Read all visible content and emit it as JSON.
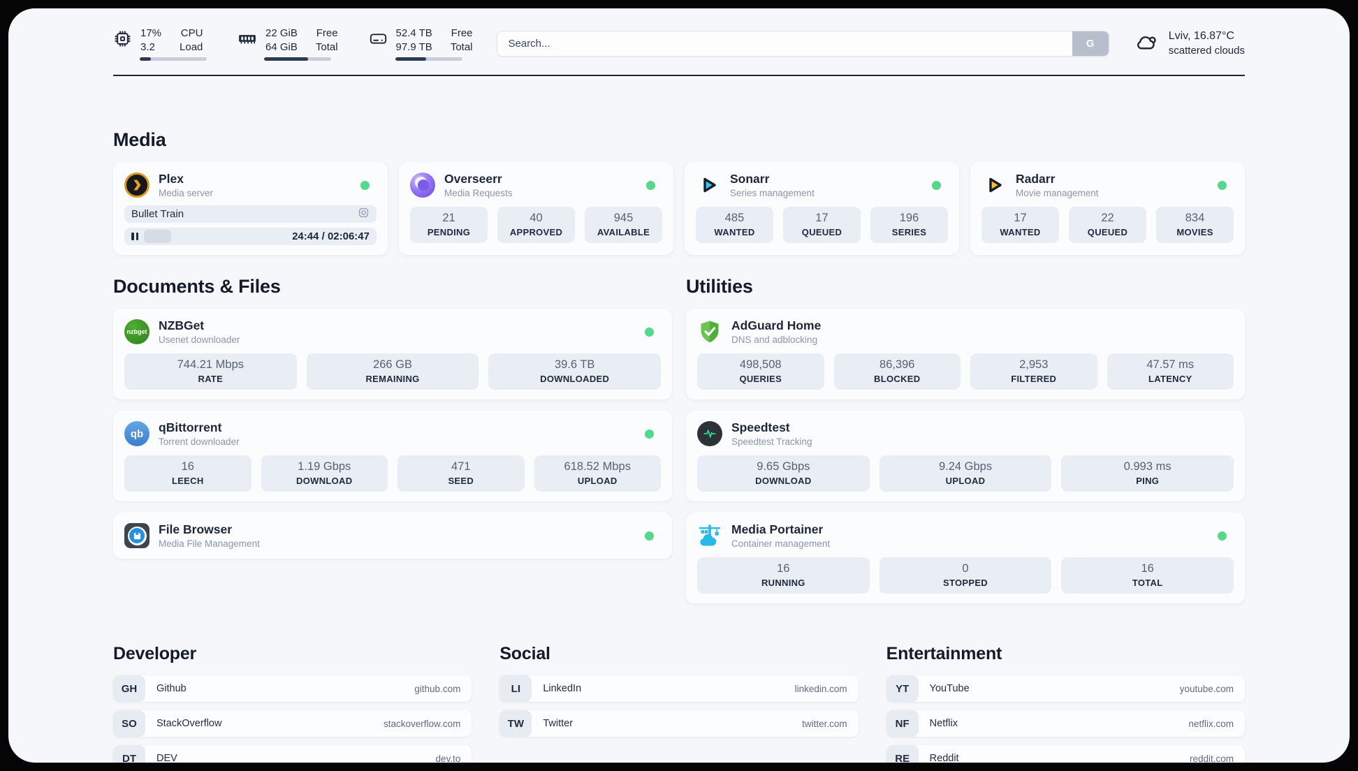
{
  "theme": {
    "outer_bg": "#050505",
    "page_bg": "#f6f7fa",
    "divider": "#1d2738",
    "status_online": "#54d98c",
    "tile_bg": "#e9edf4"
  },
  "header": {
    "cpu": {
      "icon": "cpu-chip-icon",
      "line1_value": "17%",
      "line2_value": "3.2",
      "line1_label": "CPU",
      "line2_label": "Load",
      "progress_pct": 17
    },
    "memory": {
      "icon": "memory-icon",
      "line1_value": "22 GiB",
      "line2_value": "64 GiB",
      "line1_label": "Free",
      "line2_label": "Total",
      "progress_pct": 66
    },
    "disk": {
      "icon": "disk-icon",
      "line1_value": "52.4 TB",
      "line2_value": "97.9 TB",
      "line1_label": "Free",
      "line2_label": "Total",
      "progress_pct": 46
    },
    "search": {
      "placeholder": "Search...",
      "button_label": "G"
    },
    "weather": {
      "icon": "cloud-icon",
      "location": "Lviv, 16.87°C",
      "condition": "scattered clouds"
    }
  },
  "sections": {
    "media": {
      "title": "Media",
      "apps": [
        {
          "name": "Plex",
          "description": "Media server",
          "icon": "plex",
          "online": true,
          "player": {
            "now_playing": "Bullet Train",
            "time": "24:44 / 02:06:47",
            "progress_pct": 19.5
          }
        },
        {
          "name": "Overseerr",
          "description": "Media Requests",
          "icon": "overseerr",
          "online": true,
          "stats": [
            {
              "value": "21",
              "label": "PENDING"
            },
            {
              "value": "40",
              "label": "APPROVED"
            },
            {
              "value": "945",
              "label": "AVAILABLE"
            }
          ]
        },
        {
          "name": "Sonarr",
          "description": "Series management",
          "icon": "sonarr",
          "online": true,
          "stats": [
            {
              "value": "485",
              "label": "WANTED"
            },
            {
              "value": "17",
              "label": "QUEUED"
            },
            {
              "value": "196",
              "label": "SERIES"
            }
          ]
        },
        {
          "name": "Radarr",
          "description": "Movie management",
          "icon": "radarr",
          "online": true,
          "stats": [
            {
              "value": "17",
              "label": "WANTED"
            },
            {
              "value": "22",
              "label": "QUEUED"
            },
            {
              "value": "834",
              "label": "MOVIES"
            }
          ]
        }
      ]
    },
    "documents": {
      "title": "Documents & Files",
      "apps": [
        {
          "name": "NZBGet",
          "description": "Usenet downloader",
          "icon": "nzbget",
          "icon_text": "nzbget",
          "online": true,
          "stats": [
            {
              "value": "744.21 Mbps",
              "label": "RATE"
            },
            {
              "value": "266 GB",
              "label": "REMAINING"
            },
            {
              "value": "39.6 TB",
              "label": "DOWNLOADED"
            }
          ]
        },
        {
          "name": "qBittorrent",
          "description": "Torrent downloader",
          "icon": "qbittorrent",
          "icon_text": "qb",
          "online": true,
          "stats": [
            {
              "value": "16",
              "label": "LEECH"
            },
            {
              "value": "1.19 Gbps",
              "label": "DOWNLOAD"
            },
            {
              "value": "471",
              "label": "SEED"
            },
            {
              "value": "618.52 Mbps",
              "label": "UPLOAD"
            }
          ]
        },
        {
          "name": "File Browser",
          "description": "Media File Management",
          "icon": "filebrowser",
          "online": true
        }
      ]
    },
    "utilities": {
      "title": "Utilities",
      "apps": [
        {
          "name": "AdGuard Home",
          "description": "DNS and adblocking",
          "icon": "adguard",
          "online": false,
          "stats": [
            {
              "value": "498,508",
              "label": "QUERIES"
            },
            {
              "value": "86,396",
              "label": "BLOCKED"
            },
            {
              "value": "2,953",
              "label": "FILTERED"
            },
            {
              "value": "47.57 ms",
              "label": "LATENCY"
            }
          ]
        },
        {
          "name": "Speedtest",
          "description": "Speedtest Tracking",
          "icon": "speedtest",
          "online": false,
          "stats": [
            {
              "value": "9.65 Gbps",
              "label": "DOWNLOAD"
            },
            {
              "value": "9.24 Gbps",
              "label": "UPLOAD"
            },
            {
              "value": "0.993 ms",
              "label": "PING"
            }
          ]
        },
        {
          "name": "Media Portainer",
          "description": "Container management",
          "icon": "portainer",
          "online": true,
          "stats": [
            {
              "value": "16",
              "label": "RUNNING"
            },
            {
              "value": "0",
              "label": "STOPPED"
            },
            {
              "value": "16",
              "label": "TOTAL"
            }
          ]
        }
      ]
    }
  },
  "bookmarks": {
    "groups": [
      {
        "title": "Developer",
        "items": [
          {
            "abbr": "GH",
            "name": "Github",
            "domain": "github.com"
          },
          {
            "abbr": "SO",
            "name": "StackOverflow",
            "domain": "stackoverflow.com"
          },
          {
            "abbr": "DT",
            "name": "DEV",
            "domain": "dev.to"
          }
        ]
      },
      {
        "title": "Social",
        "items": [
          {
            "abbr": "LI",
            "name": "LinkedIn",
            "domain": "linkedin.com"
          },
          {
            "abbr": "TW",
            "name": "Twitter",
            "domain": "twitter.com"
          }
        ]
      },
      {
        "title": "Entertainment",
        "items": [
          {
            "abbr": "YT",
            "name": "YouTube",
            "domain": "youtube.com"
          },
          {
            "abbr": "NF",
            "name": "Netflix",
            "domain": "netflix.com"
          },
          {
            "abbr": "RE",
            "name": "Reddit",
            "domain": "reddit.com"
          }
        ]
      }
    ]
  }
}
